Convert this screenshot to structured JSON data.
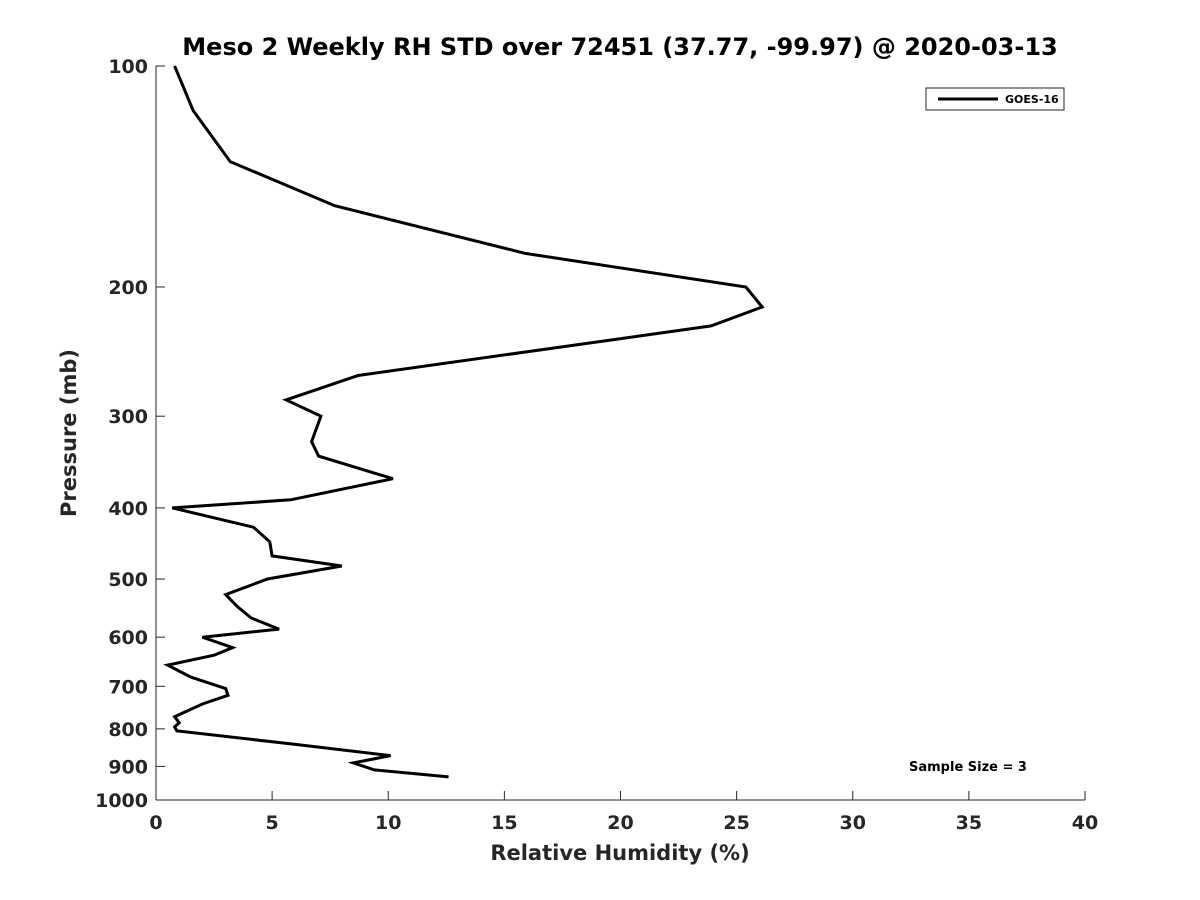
{
  "chart_data": {
    "type": "line",
    "title": "Meso 2 Weekly RH STD over 72451 (37.77, -99.97) @ 2020-03-13",
    "xlabel": "Relative Humidity (%)",
    "ylabel": "Pressure (mb)",
    "xlim": [
      0,
      40
    ],
    "ylim": [
      100,
      1000
    ],
    "yscale": "log",
    "yreversed": true,
    "xticks": [
      0,
      5,
      10,
      15,
      20,
      25,
      30,
      35,
      40
    ],
    "yticks": [
      100,
      200,
      300,
      400,
      500,
      600,
      700,
      800,
      900,
      1000
    ],
    "grid": false,
    "legend_position": "top-right",
    "annotation": "Sample Size = 3",
    "series": [
      {
        "name": "GOES-16",
        "color": "#000000",
        "x": [
          0.8,
          1.6,
          3.2,
          7.7,
          15.9,
          25.4,
          26.1,
          23.9,
          8.7,
          5.6,
          7.1,
          6.7,
          6.9,
          7.0,
          10.2,
          5.8,
          0.7,
          4.2,
          4.9,
          5.0,
          8.0,
          4.8,
          3.0,
          3.5,
          4.1,
          5.3,
          2.0,
          3.3,
          2.5,
          0.5,
          1.5,
          3.0,
          3.1,
          2.0,
          0.8,
          1.0,
          0.8,
          0.9,
          6.0,
          10.1,
          8.5,
          9.4,
          12.6
        ],
        "y": [
          100,
          115,
          135,
          155,
          180,
          200,
          213,
          226,
          264,
          285,
          300,
          325,
          335,
          340,
          365,
          390,
          400,
          425,
          445,
          465,
          480,
          500,
          525,
          545,
          565,
          585,
          600,
          620,
          635,
          655,
          680,
          705,
          720,
          740,
          770,
          785,
          795,
          805,
          840,
          870,
          890,
          910,
          930
        ]
      }
    ]
  }
}
